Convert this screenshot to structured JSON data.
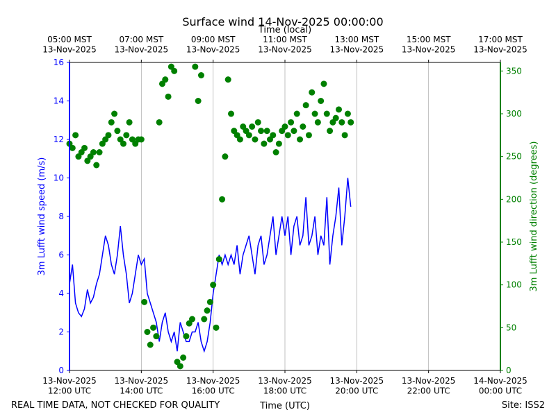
{
  "chart_data": {
    "type": "line-scatter",
    "title": "Surface wind 14-Nov-2025 00:00:00",
    "top_xlabel": "Time (local)",
    "xlabel": "Time (UTC)",
    "ylabel": "3m Lufft wind speed (m/s)",
    "y2label": "3m Lufft wind direction (degrees)",
    "footer_left": "REAL TIME DATA, NOT CHECKED FOR QUALITY",
    "footer_right": "Site: ISS2",
    "xlim": [
      "2025-11-13T12:00",
      "2025-11-14T00:00"
    ],
    "xticks": [
      {
        "value": "2025-11-13T12:00",
        "label": "13-Nov-2025\n12:00 UTC"
      },
      {
        "value": "2025-11-13T14:00",
        "label": "13-Nov-2025\n14:00 UTC"
      },
      {
        "value": "2025-11-13T16:00",
        "label": "13-Nov-2025\n16:00 UTC"
      },
      {
        "value": "2025-11-13T18:00",
        "label": "13-Nov-2025\n18:00 UTC"
      },
      {
        "value": "2025-11-13T20:00",
        "label": "13-Nov-2025\n20:00 UTC"
      },
      {
        "value": "2025-11-13T22:00",
        "label": "13-Nov-2025\n22:00 UTC"
      },
      {
        "value": "2025-11-14T00:00",
        "label": "14-Nov-2025\n00:00 UTC"
      }
    ],
    "top_xticks": [
      {
        "value": "2025-11-13T12:00",
        "label": "05:00 MST\n13-Nov-2025"
      },
      {
        "value": "2025-11-13T14:00",
        "label": "07:00 MST\n13-Nov-2025"
      },
      {
        "value": "2025-11-13T16:00",
        "label": "09:00 MST\n13-Nov-2025"
      },
      {
        "value": "2025-11-13T18:00",
        "label": "11:00 MST\n13-Nov-2025"
      },
      {
        "value": "2025-11-13T20:00",
        "label": "13:00 MST\n13-Nov-2025"
      },
      {
        "value": "2025-11-13T22:00",
        "label": "15:00 MST\n13-Nov-2025"
      },
      {
        "value": "2025-11-14T00:00",
        "label": "17:00 MST\n13-Nov-2025"
      }
    ],
    "ylim": [
      0,
      16
    ],
    "yticks": [
      0,
      2,
      4,
      6,
      8,
      10,
      12,
      14,
      16
    ],
    "y2lim": [
      0,
      360
    ],
    "y2ticks": [
      0,
      50,
      100,
      150,
      200,
      250,
      300,
      350
    ],
    "grid": true,
    "x": [
      "2025-11-13T12:00",
      "2025-11-13T12:05",
      "2025-11-13T12:10",
      "2025-11-13T12:15",
      "2025-11-13T12:20",
      "2025-11-13T12:25",
      "2025-11-13T12:30",
      "2025-11-13T12:35",
      "2025-11-13T12:40",
      "2025-11-13T12:45",
      "2025-11-13T12:50",
      "2025-11-13T12:55",
      "2025-11-13T13:00",
      "2025-11-13T13:05",
      "2025-11-13T13:10",
      "2025-11-13T13:15",
      "2025-11-13T13:20",
      "2025-11-13T13:25",
      "2025-11-13T13:30",
      "2025-11-13T13:35",
      "2025-11-13T13:40",
      "2025-11-13T13:45",
      "2025-11-13T13:50",
      "2025-11-13T13:55",
      "2025-11-13T14:00",
      "2025-11-13T14:05",
      "2025-11-13T14:10",
      "2025-11-13T14:15",
      "2025-11-13T14:20",
      "2025-11-13T14:25",
      "2025-11-13T14:30",
      "2025-11-13T14:35",
      "2025-11-13T14:40",
      "2025-11-13T14:45",
      "2025-11-13T14:50",
      "2025-11-13T14:55",
      "2025-11-13T15:00",
      "2025-11-13T15:05",
      "2025-11-13T15:10",
      "2025-11-13T15:15",
      "2025-11-13T15:20",
      "2025-11-13T15:25",
      "2025-11-13T15:30",
      "2025-11-13T15:35",
      "2025-11-13T15:40",
      "2025-11-13T15:45",
      "2025-11-13T15:50",
      "2025-11-13T15:55",
      "2025-11-13T16:00",
      "2025-11-13T16:05",
      "2025-11-13T16:10",
      "2025-11-13T16:15",
      "2025-11-13T16:20",
      "2025-11-13T16:25",
      "2025-11-13T16:30",
      "2025-11-13T16:35",
      "2025-11-13T16:40",
      "2025-11-13T16:45",
      "2025-11-13T16:50",
      "2025-11-13T16:55",
      "2025-11-13T17:00",
      "2025-11-13T17:05",
      "2025-11-13T17:10",
      "2025-11-13T17:15",
      "2025-11-13T17:20",
      "2025-11-13T17:25",
      "2025-11-13T17:30",
      "2025-11-13T17:35",
      "2025-11-13T17:40",
      "2025-11-13T17:45",
      "2025-11-13T17:50",
      "2025-11-13T17:55",
      "2025-11-13T18:00",
      "2025-11-13T18:05",
      "2025-11-13T18:10",
      "2025-11-13T18:15",
      "2025-11-13T18:20",
      "2025-11-13T18:25",
      "2025-11-13T18:30",
      "2025-11-13T18:35",
      "2025-11-13T18:40",
      "2025-11-13T18:45",
      "2025-11-13T18:50",
      "2025-11-13T18:55",
      "2025-11-13T19:00",
      "2025-11-13T19:05",
      "2025-11-13T19:10",
      "2025-11-13T19:15",
      "2025-11-13T19:20",
      "2025-11-13T19:25",
      "2025-11-13T19:30",
      "2025-11-13T19:35",
      "2025-11-13T19:40",
      "2025-11-13T19:45",
      "2025-11-13T19:50"
    ],
    "series": [
      {
        "kind": "line",
        "color": "#0000ff",
        "values": [
          4.5,
          5.5,
          3.5,
          3.0,
          2.8,
          3.2,
          4.2,
          3.5,
          3.8,
          4.5,
          5.0,
          6.0,
          7.0,
          6.5,
          5.5,
          5.0,
          6.0,
          7.5,
          6.0,
          5.0,
          3.5,
          4.0,
          5.0,
          6.0,
          5.5,
          5.8,
          4.0,
          3.5,
          3.0,
          2.5,
          1.5,
          2.5,
          3.0,
          2.0,
          1.5,
          2.0,
          1.0,
          2.5,
          2.0,
          1.5,
          1.5,
          2.0,
          2.0,
          2.5,
          1.5,
          1.0,
          1.5,
          2.5,
          4.0,
          5.0,
          6.0,
          5.5,
          6.0,
          5.5,
          6.0,
          5.5,
          6.5,
          5.0,
          6.0,
          6.5,
          7.0,
          6.0,
          5.0,
          6.5,
          7.0,
          5.5,
          6.0,
          7.0,
          8.0,
          6.0,
          7.0,
          8.0,
          7.0,
          8.0,
          6.0,
          7.5,
          8.0,
          6.5,
          7.0,
          9.0,
          6.5,
          7.0,
          8.0,
          6.0,
          7.0,
          6.5,
          9.0,
          5.5,
          7.0,
          8.0,
          9.5,
          6.5,
          8.0,
          10.0,
          8.5
        ]
      },
      {
        "kind": "scatter",
        "color": "#008000",
        "axis": "y2",
        "values": [
          265,
          260,
          275,
          250,
          255,
          260,
          245,
          250,
          255,
          240,
          255,
          265,
          270,
          275,
          290,
          300,
          280,
          270,
          265,
          275,
          290,
          270,
          265,
          270,
          270,
          80,
          45,
          30,
          50,
          40,
          290,
          335,
          340,
          320,
          355,
          350,
          10,
          5,
          15,
          40,
          55,
          60,
          355,
          315,
          345,
          60,
          70,
          80,
          100,
          50,
          130,
          200,
          250,
          340,
          300,
          280,
          275,
          270,
          285,
          280,
          275,
          285,
          270,
          290,
          280,
          265,
          280,
          270,
          275,
          255,
          265,
          280,
          285,
          275,
          290,
          280,
          300,
          270,
          285,
          310,
          275,
          325,
          300,
          290,
          315,
          335,
          300,
          280,
          290,
          295,
          305,
          290,
          275,
          300,
          290
        ]
      }
    ]
  }
}
